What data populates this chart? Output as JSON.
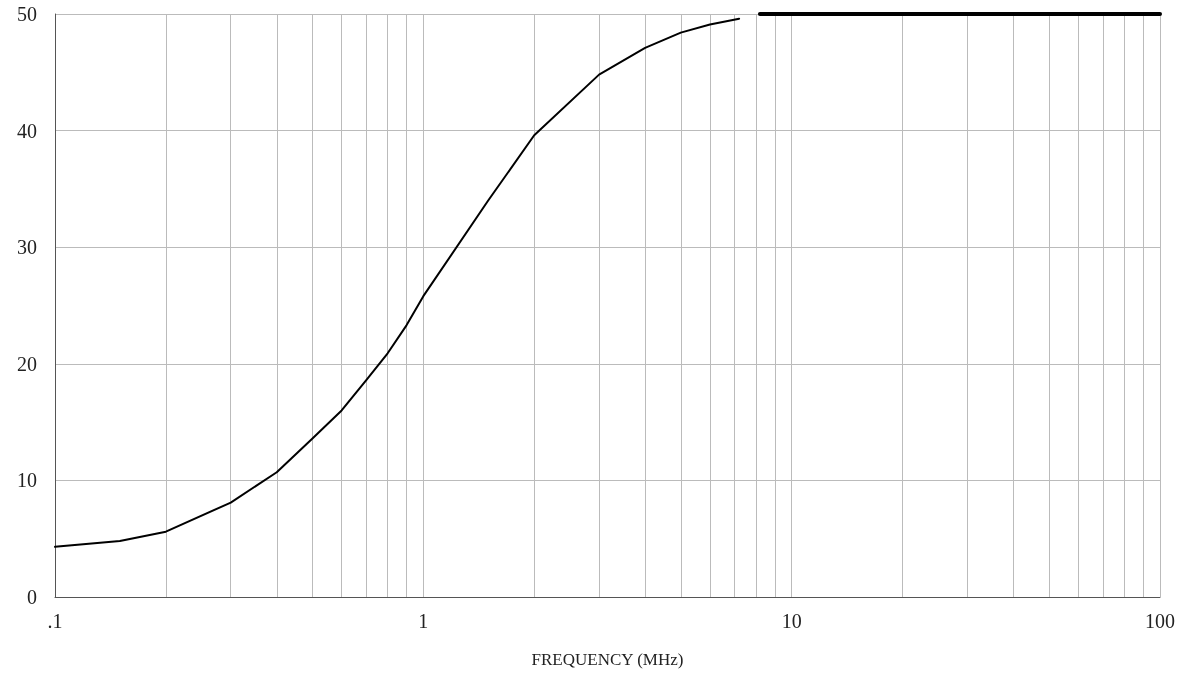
{
  "chart_data": {
    "type": "line",
    "xlabel": "FREQUENCY (MHz)",
    "log": "x",
    "grid": true,
    "marker": "none",
    "line_style": "solid",
    "xlim": [
      0.1,
      100
    ],
    "xticks": [
      {
        "value": 0.1,
        "label": ".1"
      },
      1,
      10,
      100
    ],
    "ylim": [
      0,
      50
    ],
    "yticks": [
      0,
      10,
      20,
      30,
      40,
      50
    ],
    "series": [
      {
        "color": "#000000",
        "x": [
          0.1,
          0.15,
          0.2,
          0.3,
          0.4,
          0.5,
          0.6,
          0.7,
          0.8,
          0.9,
          1,
          1.5,
          2,
          3,
          4,
          5,
          6,
          7.2
        ],
        "values": [
          4.3,
          4.8,
          5.6,
          8.1,
          10.7,
          13.6,
          16.0,
          18.6,
          20.9,
          23.3,
          25.8,
          34.0,
          39.6,
          44.8,
          47.1,
          48.4,
          49.1,
          49.6
        ]
      },
      {
        "color": "#000000",
        "x": [
          8.2,
          100
        ],
        "values": [
          50,
          50
        ]
      }
    ]
  }
}
